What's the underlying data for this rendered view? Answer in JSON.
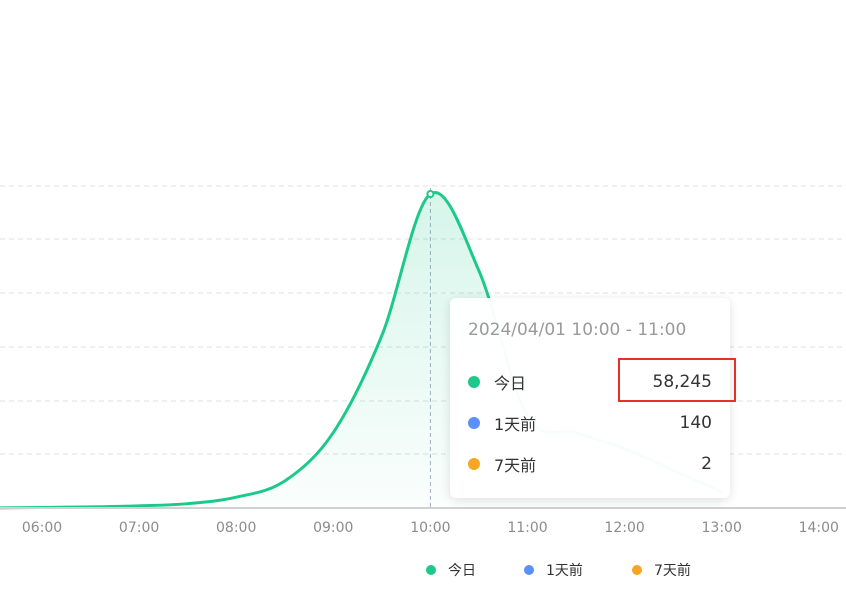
{
  "chart_data": {
    "type": "area",
    "x": [
      "06:00",
      "07:00",
      "08:00",
      "09:00",
      "10:00",
      "11:00",
      "12:00",
      "13:00",
      "14:00"
    ],
    "series": [
      {
        "name": "今日",
        "color": "#1dc98a",
        "points": [
          [
            "05:30",
            0
          ],
          [
            "06:00",
            100
          ],
          [
            "06:30",
            200
          ],
          [
            "07:00",
            400
          ],
          [
            "07:30",
            800
          ],
          [
            "08:00",
            2000
          ],
          [
            "08:30",
            5000
          ],
          [
            "09:00",
            14000
          ],
          [
            "09:30",
            32000
          ],
          [
            "10:00",
            58245
          ],
          [
            "10:30",
            44000
          ],
          [
            "11:00",
            17000
          ],
          [
            "11:30",
            14000
          ],
          [
            "12:00",
            11000
          ],
          [
            "12:30",
            7000
          ],
          [
            "13:00",
            3000
          ]
        ]
      },
      {
        "name": "1天前",
        "color": "#5b8ff9",
        "points": []
      },
      {
        "name": "7天前",
        "color": "#f6a623",
        "points": []
      }
    ],
    "ylim": [
      0,
      58245
    ],
    "grid": true,
    "legend_position": "bottom"
  },
  "tooltip": {
    "title": "2024/04/01 10:00 - 11:00",
    "rows": [
      {
        "name": "今日",
        "value": "58,245",
        "color": "#1dc98a"
      },
      {
        "name": "1天前",
        "value": "140",
        "color": "#5b8ff9"
      },
      {
        "name": "7天前",
        "value": "2",
        "color": "#f6a623"
      }
    ]
  },
  "legend": [
    {
      "name": "今日",
      "color": "#1dc98a"
    },
    {
      "name": "1天前",
      "color": "#5b8ff9"
    },
    {
      "name": "7天前",
      "color": "#f6a623"
    }
  ],
  "highlight_color": "#e8302a"
}
